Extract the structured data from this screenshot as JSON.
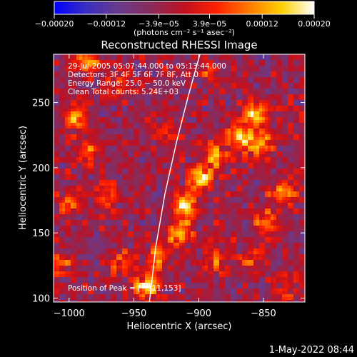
{
  "chart_data": {
    "type": "heatmap",
    "title": "Reconstructed RHESSI Image",
    "xlabel": "Heliocentric X (arcsec)",
    "ylabel": "Heliocentric Y (arcsec)",
    "xlim": [
      -1012,
      -818
    ],
    "ylim": [
      97,
      287
    ],
    "x_ticks": [
      {
        "value": -1000,
        "label": "−1000"
      },
      {
        "value": -950,
        "label": "−950"
      },
      {
        "value": -900,
        "label": "−900"
      },
      {
        "value": -850,
        "label": "−850"
      }
    ],
    "y_ticks": [
      {
        "value": 100,
        "label": "100"
      },
      {
        "value": 150,
        "label": "150"
      },
      {
        "value": 200,
        "label": "200"
      },
      {
        "value": 250,
        "label": "250"
      }
    ],
    "colorbar": {
      "range": [
        -0.0002,
        0.0002
      ],
      "tick_values": [
        -0.0002,
        -0.00012,
        -3.9e-05,
        3.9e-05,
        0.00012,
        0.0002
      ],
      "tick_labels": [
        "−0.00020",
        "−0.00012",
        "−3.9e−05",
        "3.9e−05",
        "0.00012",
        "0.00020"
      ],
      "unit_label": "(photons cm⁻² s⁻¹ asec⁻²)",
      "colors": [
        "#0000ff",
        "#3a2fc0",
        "#6a3a8a",
        "#8a2a5a",
        "#c01020",
        "#ff2000",
        "#ff7a00",
        "#ffd000",
        "#ffffff"
      ]
    },
    "info_lines": [
      "29‑Jul‑2005 05:07:44.000 to 05:13:44.000",
      "Detectors: 3F 4F 5F 6F 7F 8F, Att 0",
      "Energy Range: 25.0 − 50.0 keV",
      "Clean     Total counts: 5.24E+03"
    ],
    "peak_label": "Position of Peak = [−911,153]",
    "peak": {
      "x": -911,
      "y": 153
    },
    "limb_curve": [
      {
        "x": -938,
        "y": 97
      },
      {
        "x": -933,
        "y": 140
      },
      {
        "x": -926,
        "y": 180
      },
      {
        "x": -917,
        "y": 220
      },
      {
        "x": -908,
        "y": 255
      },
      {
        "x": -899,
        "y": 287
      }
    ],
    "sources": [
      {
        "x": -940,
        "y": 108,
        "peak": 0.0002
      },
      {
        "x": -932,
        "y": 132,
        "peak": 0.00017
      },
      {
        "x": -915,
        "y": 150,
        "peak": 0.0002
      },
      {
        "x": -911,
        "y": 170,
        "peak": 0.00019
      },
      {
        "x": -898,
        "y": 192,
        "peak": 0.00018
      },
      {
        "x": -886,
        "y": 208,
        "peak": 0.00016
      },
      {
        "x": -868,
        "y": 224,
        "peak": 0.00018
      },
      {
        "x": -852,
        "y": 218,
        "peak": 0.00017
      },
      {
        "x": -855,
        "y": 242,
        "peak": 0.0002
      },
      {
        "x": -835,
        "y": 180,
        "peak": 0.00016
      },
      {
        "x": -848,
        "y": 158,
        "peak": 0.00013
      },
      {
        "x": -861,
        "y": 128,
        "peak": 0.00011
      },
      {
        "x": -888,
        "y": 128,
        "peak": 0.00012
      },
      {
        "x": -995,
        "y": 238,
        "peak": 0.00015
      },
      {
        "x": -986,
        "y": 212,
        "peak": 0.00012
      },
      {
        "x": -1001,
        "y": 172,
        "peak": 0.00012
      },
      {
        "x": -971,
        "y": 178,
        "peak": 9e-05
      },
      {
        "x": -962,
        "y": 262,
        "peak": 0.0001
      },
      {
        "x": -985,
        "y": 282,
        "peak": 0.00013
      },
      {
        "x": -1005,
        "y": 128,
        "peak": 9e-05
      },
      {
        "x": -960,
        "y": 128,
        "peak": 0.0001
      },
      {
        "x": -924,
        "y": 226,
        "peak": 8e-05
      },
      {
        "x": -892,
        "y": 275,
        "peak": 8e-05
      },
      {
        "x": -832,
        "y": 110,
        "peak": 8e-05
      }
    ]
  },
  "footer": {
    "timestamp": "1‑May‑2022 08:44"
  }
}
